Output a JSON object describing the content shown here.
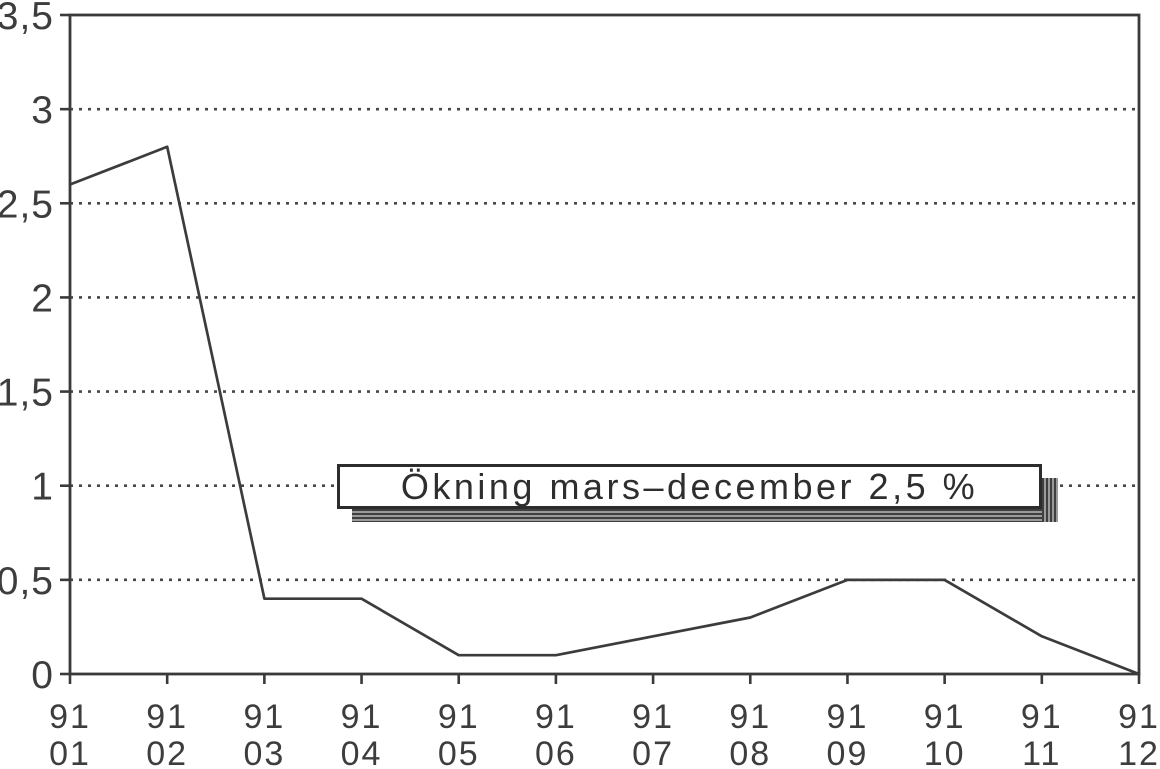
{
  "chart_data": {
    "type": "line",
    "title": "",
    "xlabel": "",
    "ylabel": "",
    "x_categories": [
      [
        "91",
        "01"
      ],
      [
        "91",
        "02"
      ],
      [
        "91",
        "03"
      ],
      [
        "91",
        "04"
      ],
      [
        "91",
        "05"
      ],
      [
        "91",
        "06"
      ],
      [
        "91",
        "07"
      ],
      [
        "91",
        "08"
      ],
      [
        "91",
        "09"
      ],
      [
        "91",
        "10"
      ],
      [
        "91",
        "11"
      ],
      [
        "91",
        "12"
      ]
    ],
    "values": [
      2.6,
      2.8,
      0.4,
      0.4,
      0.1,
      0.1,
      0.2,
      0.3,
      0.5,
      0.5,
      0.2,
      0.0
    ],
    "ylim": [
      0,
      3.5
    ],
    "ytick_step": 0.5,
    "ytick_labels": [
      "0",
      "0,5",
      "1",
      "1,5",
      "2",
      "2,5",
      "3",
      "3,5"
    ],
    "grid": "horizontal-dotted",
    "legend": "none",
    "annotation": {
      "text": "Ökning mars–december 2,5 %"
    }
  },
  "colors": {
    "ink": "#3a3a3a",
    "paper": "#ffffff",
    "callout_shadow": "#707070"
  }
}
